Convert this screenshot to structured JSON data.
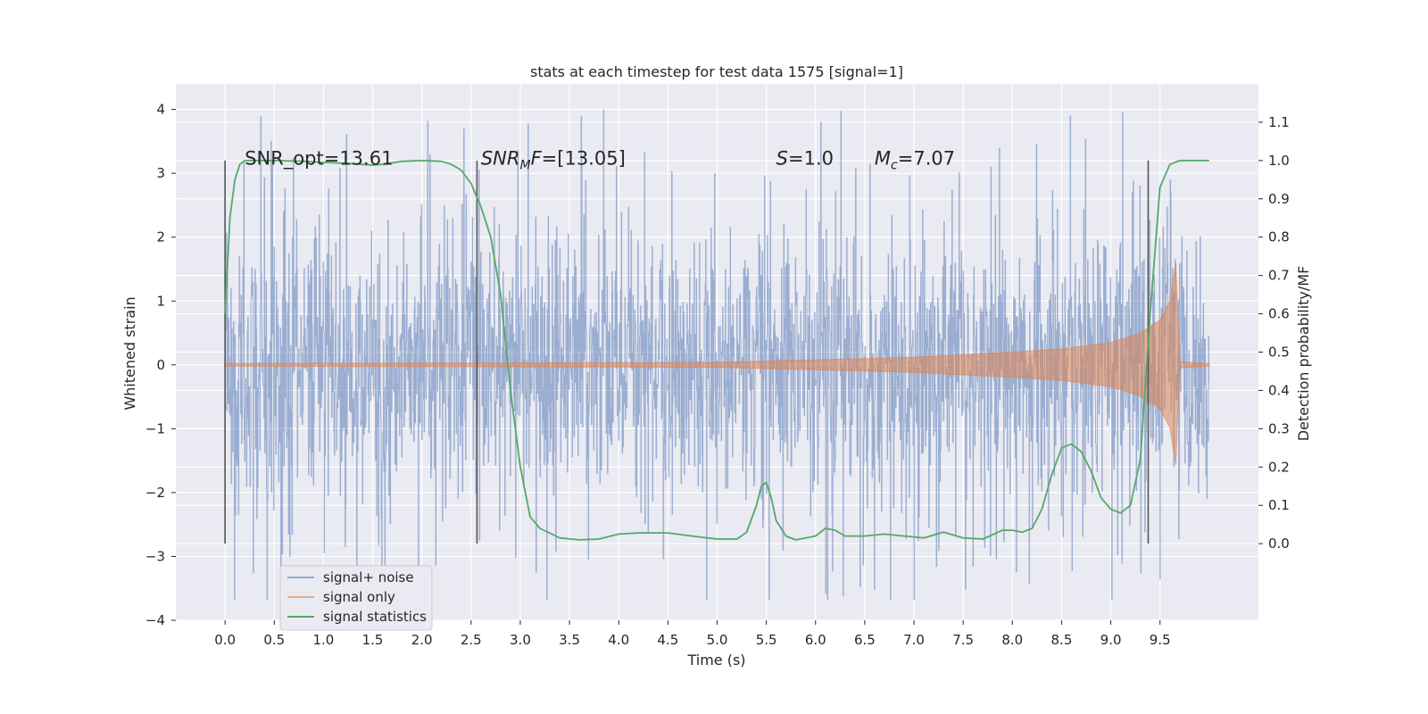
{
  "chart_data": {
    "type": "line",
    "title": "stats at each timestep for test data 1575 [signal=1]",
    "xlabel": "Time (s)",
    "ylabel_left": "Whitened strain",
    "ylabel_right": "Detection probability/MF",
    "xlim": [
      -0.5,
      10.5
    ],
    "ylim_left": [
      -4,
      4.4
    ],
    "ylim_right": [
      -0.2,
      1.2
    ],
    "x_ticks": [
      "0.0",
      "0.5",
      "1.0",
      "1.5",
      "2.0",
      "2.5",
      "3.0",
      "3.5",
      "4.0",
      "4.5",
      "5.0",
      "5.5",
      "6.0",
      "6.5",
      "7.0",
      "7.5",
      "8.0",
      "8.5",
      "9.0",
      "9.5"
    ],
    "y_ticks_left": [
      "4",
      "3",
      "2",
      "1",
      "0",
      "−1",
      "−2",
      "−3",
      "−4"
    ],
    "y_ticks_right": [
      "1.1",
      "1.0",
      "0.9",
      "0.8",
      "0.7",
      "0.6",
      "0.5",
      "0.4",
      "0.3",
      "0.2",
      "0.1",
      "0.0"
    ],
    "grid": true,
    "legend_position": "lower-left",
    "annotations": [
      {
        "text": "SNR_opt=13.61",
        "x": 0.2,
        "y": 3.25
      },
      {
        "text": "SNR_MF=[13.05]",
        "x": 2.6,
        "y": 3.25
      },
      {
        "text": "S=1.0",
        "x": 5.6,
        "y": 3.25
      },
      {
        "text": "M_c=7.07",
        "x": 6.6,
        "y": 3.25
      }
    ],
    "vlines": [
      {
        "x": 0.0,
        "ymin": -2.8,
        "ymax": 3.2
      },
      {
        "x": 2.56,
        "ymin": -2.8,
        "ymax": 3.2
      },
      {
        "x": 9.38,
        "ymin": -2.8,
        "ymax": 3.2
      }
    ],
    "series": [
      {
        "name": "signal+ noise",
        "color": "#4c72b0",
        "axis": "left",
        "kind": "noise",
        "x_range": [
          0,
          10
        ],
        "typical_amplitude": 1.4,
        "peak_amplitude": 4.0
      },
      {
        "name": "signal only",
        "color": "#dd8452",
        "axis": "left",
        "kind": "chirp",
        "x_range": [
          0,
          10
        ],
        "envelope": [
          [
            0,
            0.02
          ],
          [
            5,
            0.04
          ],
          [
            6,
            0.08
          ],
          [
            7,
            0.12
          ],
          [
            8,
            0.2
          ],
          [
            8.5,
            0.25
          ],
          [
            9,
            0.35
          ],
          [
            9.3,
            0.5
          ],
          [
            9.5,
            0.7
          ],
          [
            9.6,
            1.0
          ],
          [
            9.66,
            1.6
          ],
          [
            9.7,
            0.05
          ],
          [
            10,
            0.02
          ]
        ]
      },
      {
        "name": "signal statistics",
        "color": "#55a868",
        "axis": "right",
        "x": [
          0.0,
          0.05,
          0.1,
          0.15,
          0.2,
          0.3,
          0.5,
          0.8,
          1.0,
          1.2,
          1.4,
          1.5,
          1.6,
          1.8,
          2.0,
          2.2,
          2.3,
          2.4,
          2.5,
          2.6,
          2.7,
          2.8,
          2.9,
          3.0,
          3.1,
          3.2,
          3.4,
          3.6,
          3.8,
          4.0,
          4.2,
          4.5,
          4.8,
          5.0,
          5.2,
          5.3,
          5.4,
          5.45,
          5.5,
          5.55,
          5.6,
          5.7,
          5.8,
          5.9,
          6.0,
          6.1,
          6.2,
          6.3,
          6.5,
          6.7,
          6.9,
          7.1,
          7.3,
          7.5,
          7.7,
          7.9,
          8.0,
          8.1,
          8.2,
          8.3,
          8.4,
          8.5,
          8.6,
          8.7,
          8.8,
          8.9,
          9.0,
          9.1,
          9.2,
          9.3,
          9.4,
          9.5,
          9.6,
          9.7,
          9.8,
          9.9,
          10.0
        ],
        "y": [
          0.6,
          0.85,
          0.95,
          0.99,
          1.0,
          1.0,
          1.0,
          0.998,
          0.995,
          0.993,
          0.99,
          0.988,
          0.99,
          0.998,
          1.0,
          0.998,
          0.99,
          0.975,
          0.94,
          0.88,
          0.8,
          0.65,
          0.4,
          0.2,
          0.07,
          0.04,
          0.015,
          0.01,
          0.012,
          0.025,
          0.028,
          0.028,
          0.018,
          0.012,
          0.012,
          0.03,
          0.1,
          0.15,
          0.16,
          0.12,
          0.06,
          0.02,
          0.01,
          0.015,
          0.02,
          0.04,
          0.035,
          0.02,
          0.02,
          0.025,
          0.02,
          0.015,
          0.03,
          0.015,
          0.012,
          0.035,
          0.035,
          0.03,
          0.04,
          0.09,
          0.18,
          0.25,
          0.26,
          0.24,
          0.19,
          0.12,
          0.09,
          0.08,
          0.1,
          0.22,
          0.6,
          0.93,
          0.99,
          1.0,
          1.0,
          1.0,
          1.0
        ]
      }
    ]
  }
}
